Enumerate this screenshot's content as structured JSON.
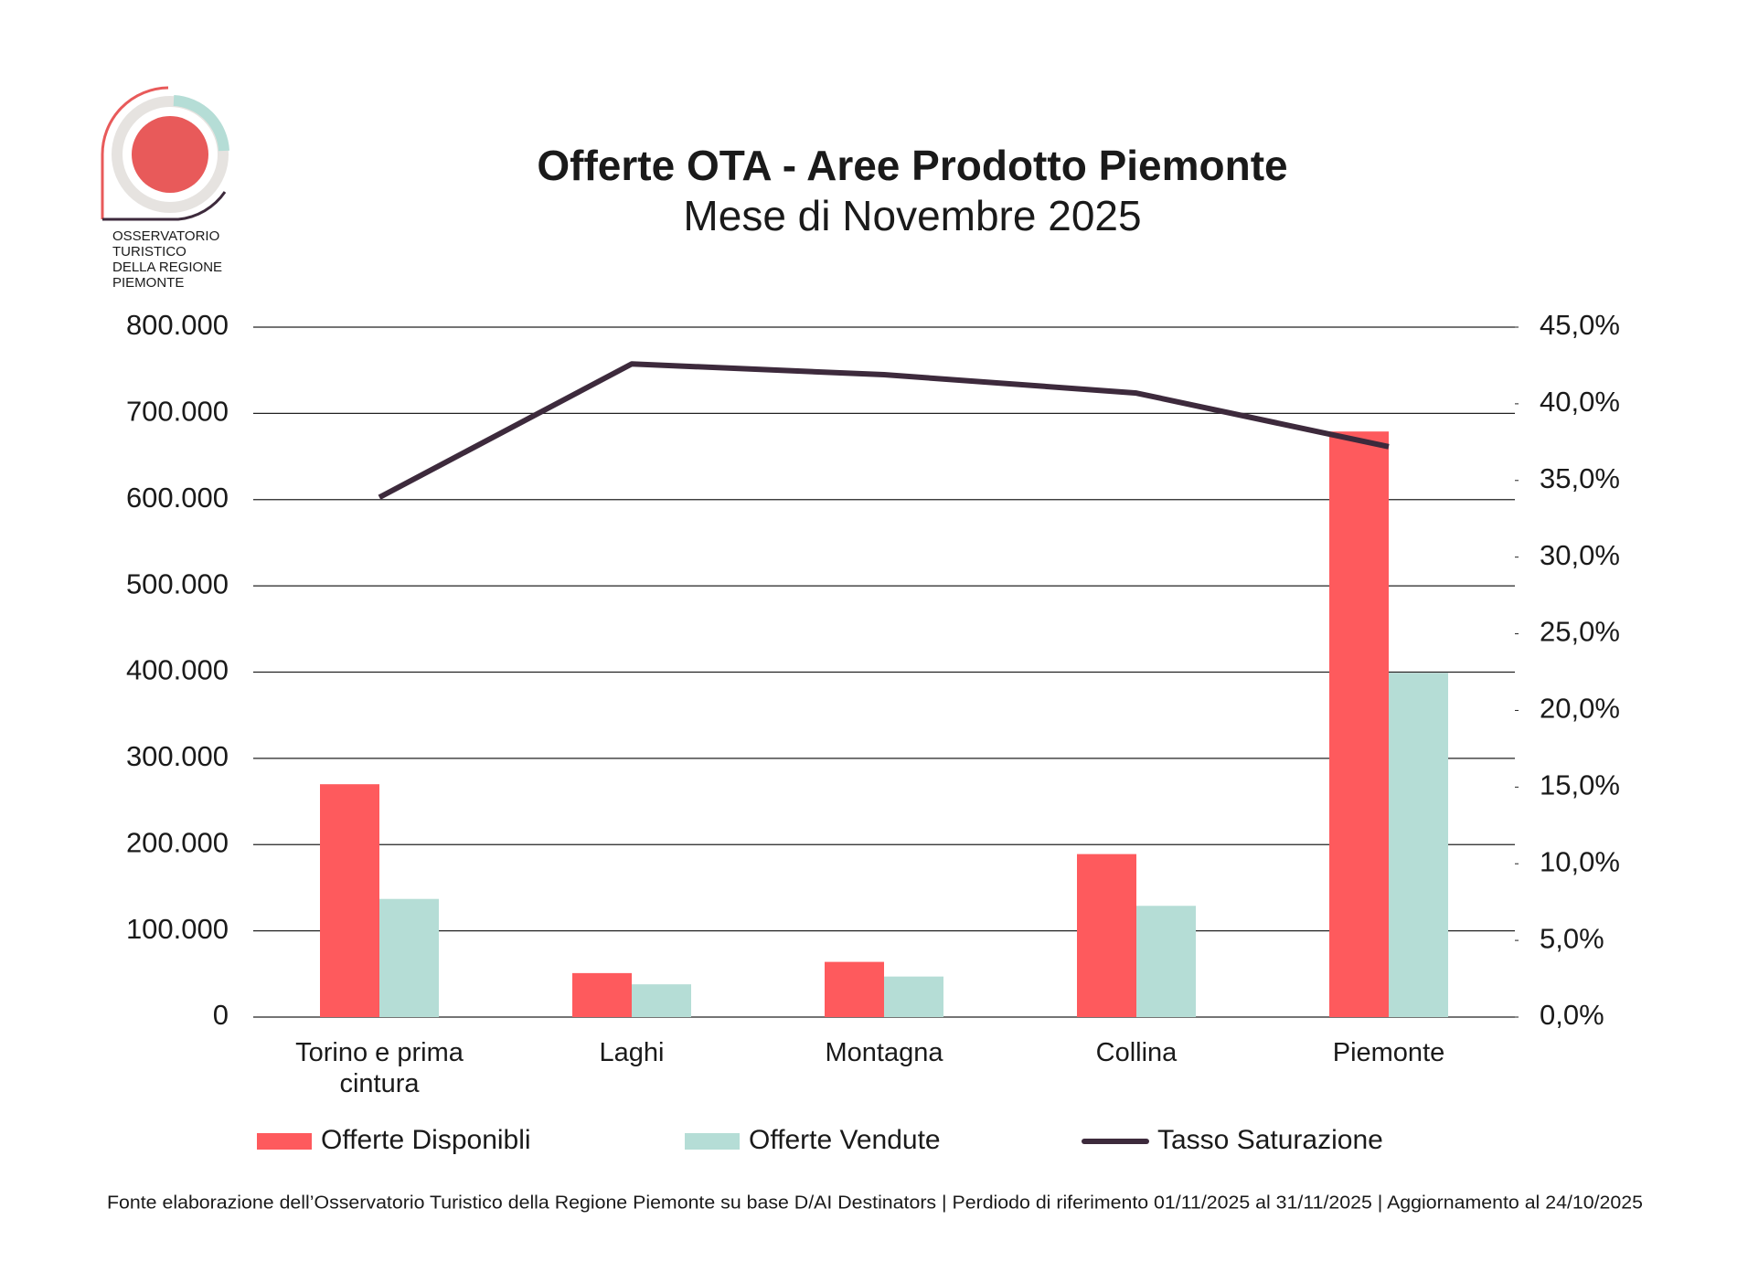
{
  "logo": {
    "lines": [
      "OSSERVATORIO",
      "TURISTICO",
      "DELLA REGIONE",
      "PIEMONTE"
    ]
  },
  "chart_data": {
    "type": "bar",
    "title": "Offerte OTA - Aree Prodotto Piemonte",
    "subtitle": "Mese di Novembre 2025",
    "categories": [
      "Torino e prima cintura",
      "Laghi",
      "Montagna",
      "Collina",
      "Piemonte"
    ],
    "series": [
      {
        "name": "Offerte Disponibli",
        "type": "bar",
        "color": "#fe5a5d",
        "values": [
          270000,
          51000,
          64000,
          189000,
          679000
        ]
      },
      {
        "name": "Offerte Vendute",
        "type": "bar",
        "color": "#b5ddd6",
        "values": [
          137000,
          38000,
          47000,
          129000,
          399000
        ]
      },
      {
        "name": "Tasso Saturazione",
        "type": "line",
        "axis": "y2",
        "color": "#3d2a3c",
        "values": [
          33.9,
          42.6,
          41.9,
          40.7,
          37.2
        ]
      }
    ],
    "ylim": [
      0,
      800000
    ],
    "yticks": [
      0,
      {
        "value": 100000,
        "label": "100.000"
      },
      {
        "value": 200000,
        "label": "200.000"
      },
      {
        "value": 300000,
        "label": "300.000"
      },
      {
        "value": 400000,
        "label": "400.000"
      },
      {
        "value": 500000,
        "label": "500.000"
      },
      {
        "value": 600000,
        "label": "600.000"
      },
      {
        "value": 700000,
        "label": "700.000"
      },
      {
        "value": 800000,
        "label": "800.000"
      }
    ],
    "y2lim": [
      0,
      45
    ],
    "y2ticks": [
      {
        "value": 0,
        "label": "0,0%"
      },
      {
        "value": 5,
        "label": "5,0%"
      },
      {
        "value": 10,
        "label": "10,0%"
      },
      {
        "value": 15,
        "label": "15,0%"
      },
      {
        "value": 20,
        "label": "20,0%"
      },
      {
        "value": 25,
        "label": "25,0%"
      },
      {
        "value": 30,
        "label": "30,0%"
      },
      {
        "value": 35,
        "label": "35,0%"
      },
      {
        "value": 40,
        "label": "40,0%"
      },
      {
        "value": 45,
        "label": "45,0%"
      }
    ],
    "grid": true,
    "legend": "bottom",
    "source": "Fonte elaborazione dell’Osservatorio Turistico della Regione Piemonte su base D/AI Destinators | Perdiodo di riferimento 01/11/2025 al 31/11/2025 | Aggiornamento al 24/10/2025"
  }
}
